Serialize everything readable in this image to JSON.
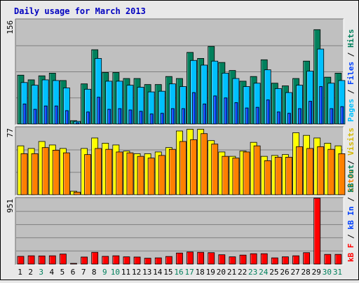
{
  "chart_data": [
    {
      "type": "bar",
      "title": "Daily usage for March 2013",
      "x_labels": [
        "1",
        "2",
        "3",
        "4",
        "5",
        "6",
        "7",
        "8",
        "9",
        "10",
        "11",
        "12",
        "13",
        "14",
        "15",
        "16",
        "17",
        "18",
        "19",
        "20",
        "21",
        "22",
        "23",
        "24",
        "25",
        "26",
        "27",
        "28",
        "29",
        "30",
        "31"
      ],
      "weekend_days": [
        3,
        9,
        10,
        16,
        17,
        23,
        24,
        30,
        31
      ],
      "ymax_label": "156",
      "ylim": [
        0,
        156
      ],
      "grid": true,
      "series": [
        {
          "name": "Hits",
          "color": "#00805c",
          "values": [
            73,
            66,
            72,
            76,
            65,
            5,
            60,
            111,
            77,
            77,
            68,
            68,
            59,
            59,
            71,
            68,
            107,
            98,
            116,
            92,
            80,
            64,
            71,
            96,
            61,
            57,
            68,
            94,
            141,
            70,
            76
          ]
        },
        {
          "name": "Files",
          "color": "#00c0ff",
          "values": [
            62,
            58,
            66,
            65,
            54,
            4,
            52,
            98,
            64,
            64,
            58,
            55,
            48,
            49,
            60,
            56,
            95,
            88,
            94,
            76,
            68,
            56,
            61,
            81,
            53,
            47,
            58,
            79,
            112,
            61,
            65
          ]
        },
        {
          "name": "Pages",
          "color": "#0040ff",
          "values": [
            30,
            22,
            27,
            27,
            20,
            2,
            18,
            40,
            22,
            23,
            21,
            19,
            15,
            16,
            23,
            23,
            47,
            30,
            42,
            39,
            32,
            24,
            25,
            36,
            18,
            16,
            23,
            34,
            56,
            23,
            26
          ]
        }
      ]
    },
    {
      "type": "bar",
      "ymax_label": "77",
      "ylim": [
        0,
        77
      ],
      "grid": true,
      "series": [
        {
          "name": "Visits",
          "color": "#ffff00",
          "values": [
            56,
            53,
            61,
            57,
            53,
            4,
            53,
            65,
            59,
            57,
            50,
            47,
            47,
            49,
            54,
            73,
            75,
            75,
            62,
            49,
            44,
            50,
            60,
            44,
            45,
            46,
            71,
            68,
            65,
            59,
            56
          ]
        },
        {
          "name": "Sites",
          "color": "#ff8000",
          "values": [
            47,
            47,
            54,
            51,
            48,
            3,
            46,
            53,
            52,
            49,
            48,
            44,
            42,
            45,
            52,
            61,
            63,
            70,
            58,
            44,
            42,
            49,
            56,
            39,
            43,
            43,
            55,
            53,
            55,
            52,
            47
          ]
        }
      ]
    },
    {
      "type": "bar",
      "ymax_label": "951",
      "ylim": [
        0,
        951
      ],
      "grid": true,
      "series": [
        {
          "name": "kB F",
          "color": "#ff0000",
          "values": [
            112,
            120,
            118,
            120,
            145,
            8,
            102,
            170,
            112,
            120,
            105,
            102,
            85,
            90,
            110,
            160,
            175,
            170,
            165,
            135,
            105,
            130,
            150,
            150,
            90,
            105,
            120,
            165,
            951,
            140,
            140
          ]
        }
      ]
    }
  ],
  "right_legends": [
    [
      {
        "text": "Pages",
        "color": "#00c0ff"
      },
      {
        "text": " / ",
        "color": "#000000"
      },
      {
        "text": "Files",
        "color": "#0040ff"
      },
      {
        "text": " / ",
        "color": "#000000"
      },
      {
        "text": "Hits",
        "color": "#00805c"
      }
    ],
    [
      {
        "text": "Sites",
        "color": "#ff8000"
      },
      {
        "text": " / ",
        "color": "#000000"
      },
      {
        "text": "Visits",
        "color": "#d4b800"
      }
    ],
    [
      {
        "text": "kB F",
        "color": "#ff0000"
      },
      {
        "text": " / ",
        "color": "#000000"
      },
      {
        "text": "kB In",
        "color": "#0040ff"
      },
      {
        "text": " / ",
        "color": "#000000"
      },
      {
        "text": "kB Out",
        "color": "#00805c"
      }
    ]
  ],
  "colors": {
    "title": "#0000c0",
    "weekday_label": "#000000",
    "weekend_label": "#00805c",
    "plot_background": "#c0c0c0",
    "gridline": "#808080"
  }
}
